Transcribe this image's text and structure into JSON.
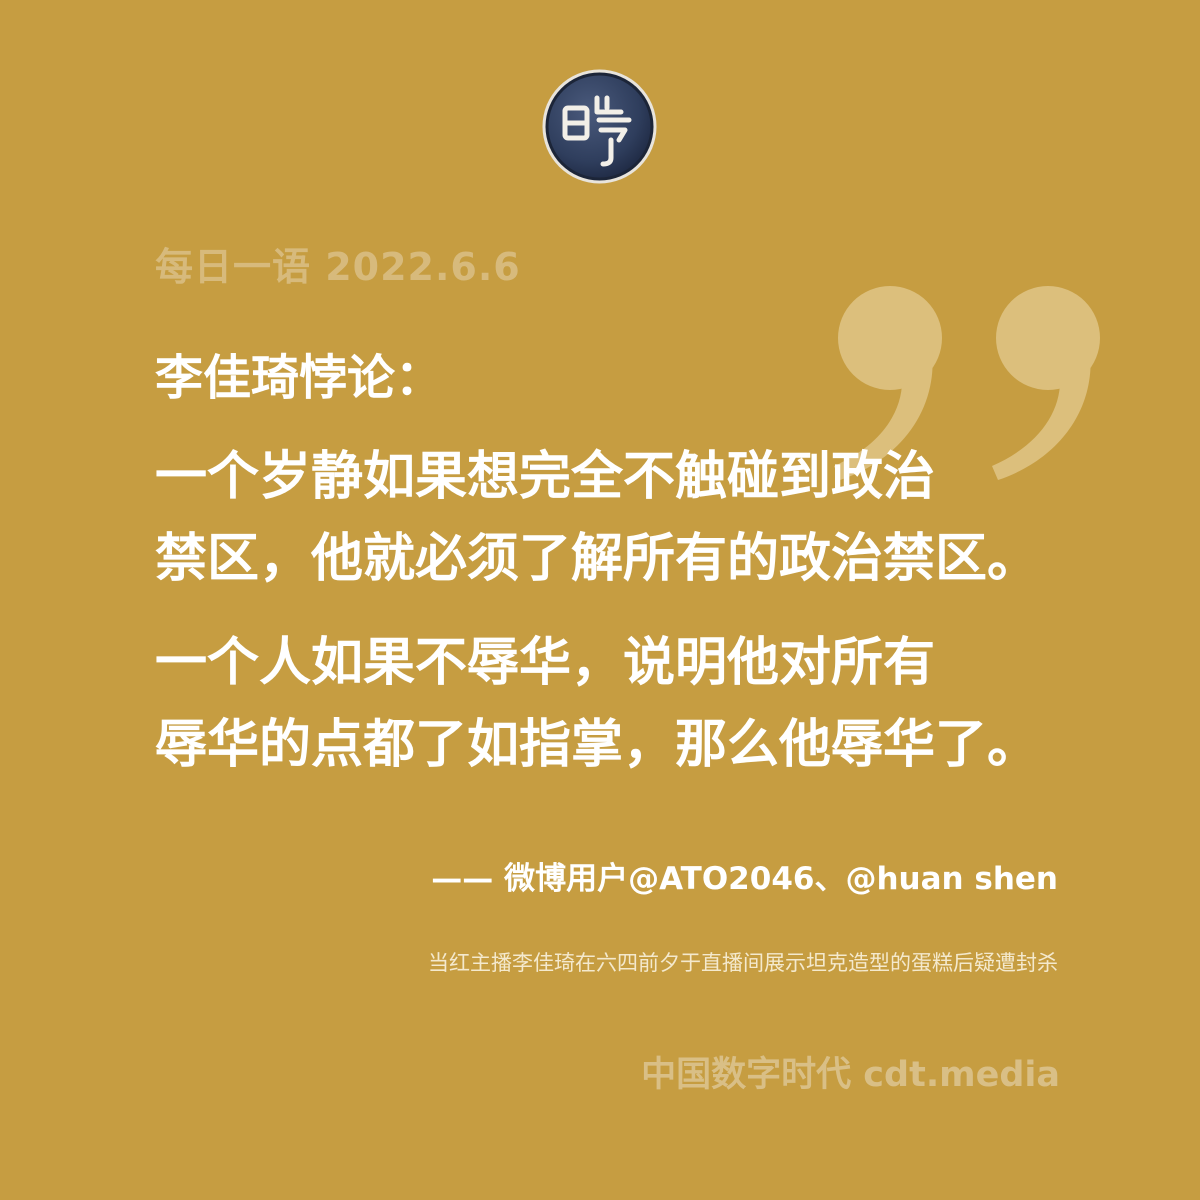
{
  "logo": {
    "icon": "cdt-seal-logo",
    "glyph": "亗"
  },
  "header": {
    "date_line": "每日一语 2022.6.6"
  },
  "quote": {
    "headline": "李佳琦悖论：",
    "paragraphs": [
      {
        "lines": [
          "一个岁静如果想完全不触碰到政治",
          "禁区，他就必须了解所有的政治禁区。"
        ]
      },
      {
        "lines": [
          "一个人如果不辱华，说明他对所有",
          "辱华的点都了如指掌，那么他辱华了。"
        ]
      }
    ],
    "decoration_icon": "closing-quote-icon"
  },
  "attribution": "—— 微博用户@ATO2046、@huan shen",
  "caption": "当红主播李佳琦在六四前夕于直播间展示坦克造型的蛋糕后疑遭封杀",
  "footer": {
    "brand": "中国数字时代 cdt.media"
  },
  "colors": {
    "background": "#c69d41",
    "logo_fill": "#2f3e5d",
    "quote_mark": "#dcbf7c",
    "date_text": "#d7ba7c",
    "footer_text": "#d9bf86"
  }
}
